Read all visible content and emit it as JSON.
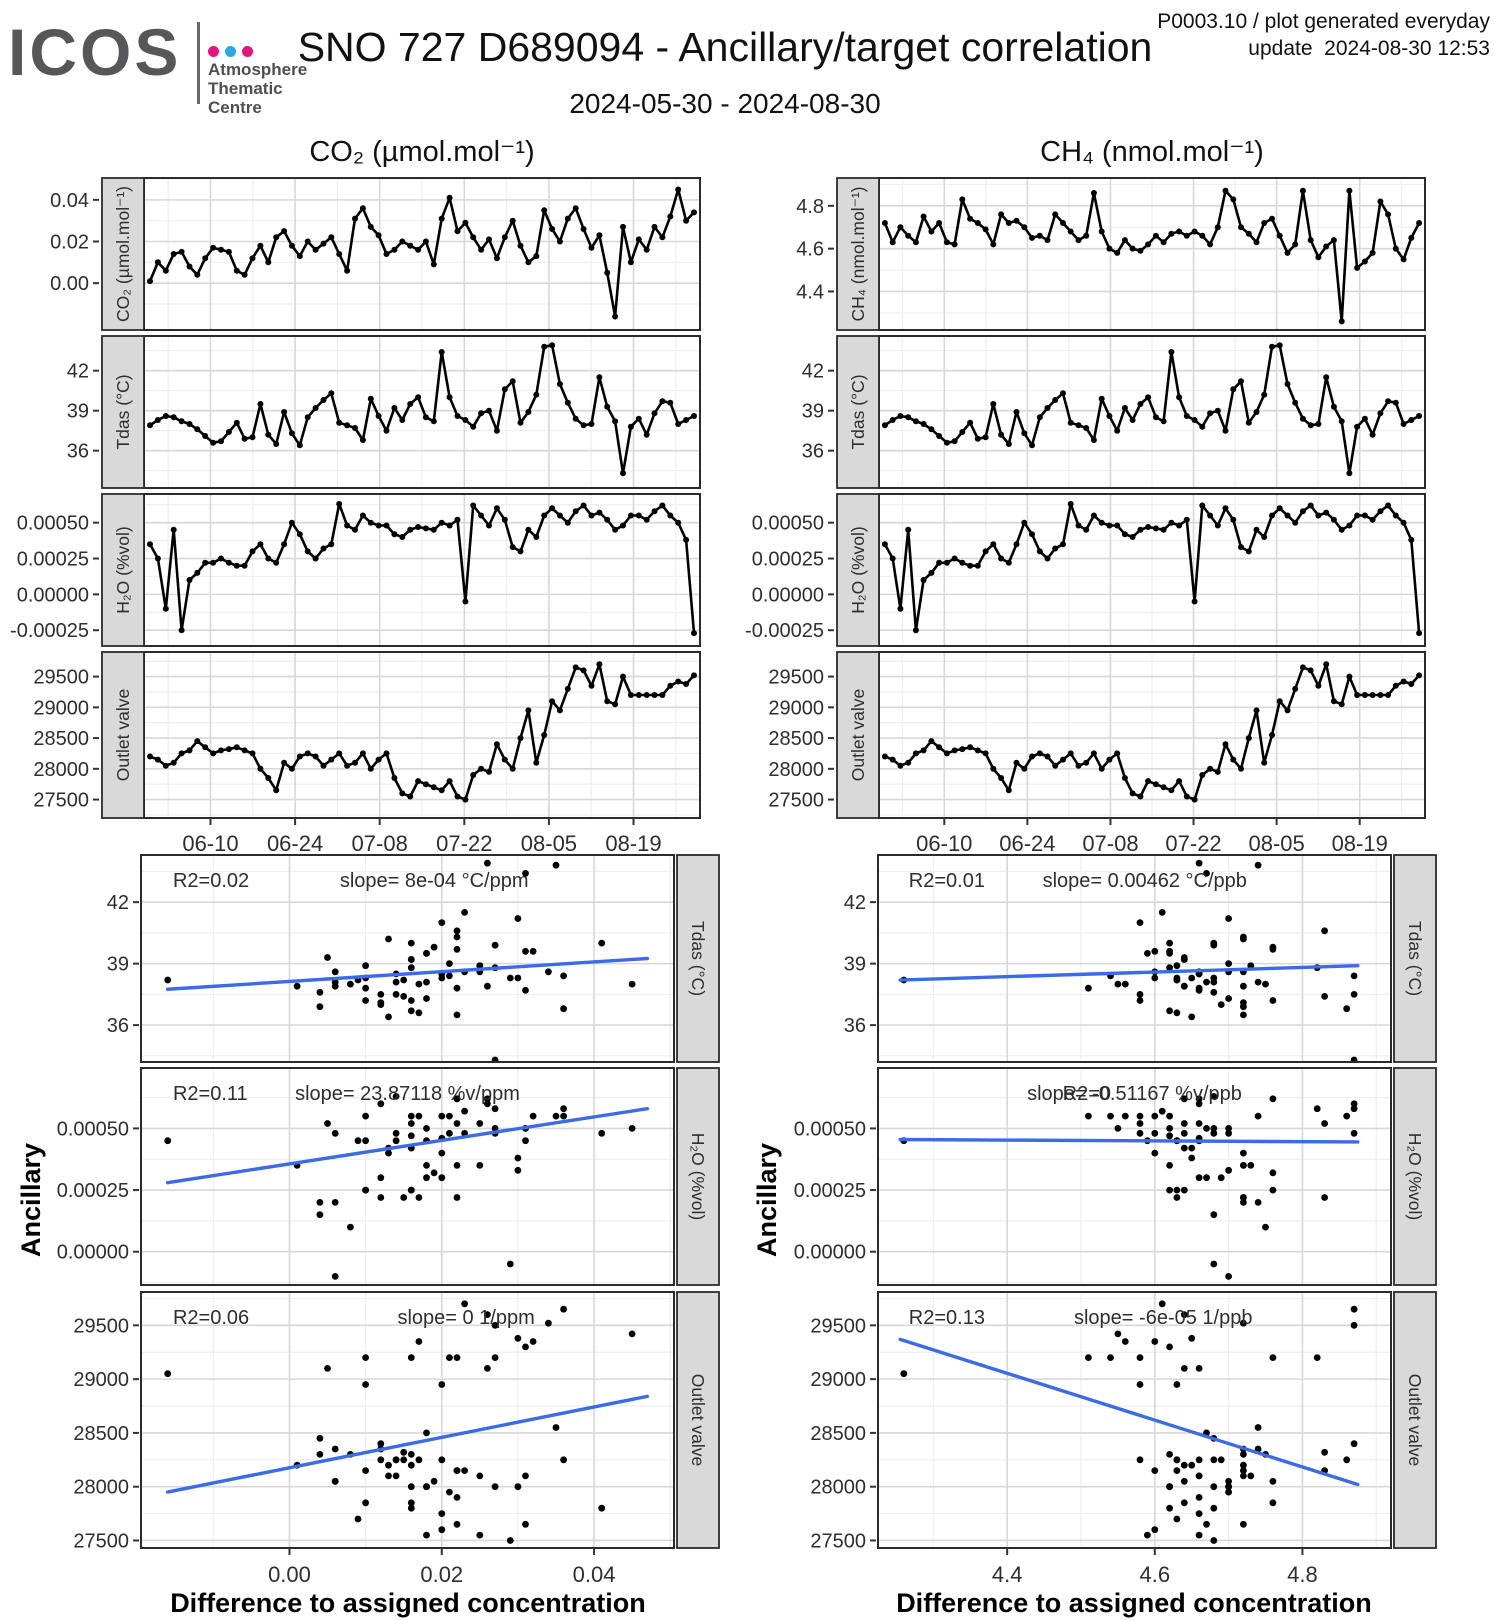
{
  "header": {
    "logo": {
      "text": "ICOS",
      "lines": [
        "Atmosphere",
        "Thematic",
        "Centre"
      ],
      "dot_colors": [
        "#e6127d",
        "#27a9e1",
        "#e6127d"
      ]
    },
    "title": "SNO 727 D689094 - Ancillary/target correlation",
    "subtitle": "2024-05-30 - 2024-08-30",
    "info": {
      "line1": "P0003.10 / plot generated everyday",
      "line2": "update  2024-08-30 12:53"
    }
  },
  "chart_data": {
    "type": "multi-panel",
    "x_label": "Difference to assigned concentration",
    "y_label": "Ancillary",
    "accent_blue": "#3B6BE8",
    "series_color": "#000000",
    "date_axis": {
      "n_days": 92,
      "major_days": [
        11,
        25,
        39,
        53,
        67,
        81
      ],
      "minor_days": [
        4,
        18,
        32,
        46,
        60,
        74,
        88
      ],
      "labels": [
        "06-10",
        "06-24",
        "07-08",
        "07-22",
        "08-05",
        "08-19"
      ]
    },
    "series": {
      "co2": [
        0.001,
        0.01,
        0.006,
        0.014,
        0.015,
        0.008,
        0.004,
        0.012,
        0.017,
        0.016,
        0.015,
        0.006,
        0.004,
        0.012,
        0.018,
        0.01,
        0.022,
        0.025,
        0.018,
        0.013,
        0.02,
        0.016,
        0.019,
        0.022,
        0.014,
        0.006,
        0.031,
        0.036,
        0.027,
        0.023,
        0.014,
        0.016,
        0.02,
        0.018,
        0.016,
        0.02,
        0.009,
        0.031,
        0.041,
        0.025,
        0.029,
        0.022,
        0.016,
        0.021,
        0.012,
        0.022,
        0.03,
        0.018,
        0.01,
        0.013,
        0.035,
        0.026,
        0.02,
        0.031,
        0.036,
        0.026,
        0.017,
        0.023,
        0.005,
        -0.016,
        0.027,
        0.01,
        0.021,
        0.016,
        0.027,
        0.022,
        0.032,
        0.045,
        0.03,
        0.034
      ],
      "ch4": [
        4.72,
        4.63,
        4.7,
        4.66,
        4.63,
        4.75,
        4.68,
        4.72,
        4.63,
        4.62,
        4.83,
        4.74,
        4.72,
        4.69,
        4.62,
        4.76,
        4.72,
        4.73,
        4.7,
        4.65,
        4.66,
        4.64,
        4.76,
        4.72,
        4.68,
        4.64,
        4.66,
        4.86,
        4.68,
        4.6,
        4.58,
        4.64,
        4.6,
        4.59,
        4.62,
        4.66,
        4.63,
        4.67,
        4.68,
        4.66,
        4.68,
        4.66,
        4.62,
        4.7,
        4.87,
        4.83,
        4.7,
        4.67,
        4.63,
        4.72,
        4.74,
        4.66,
        4.58,
        4.62,
        4.87,
        4.64,
        4.56,
        4.61,
        4.64,
        4.26,
        4.87,
        4.51,
        4.54,
        4.58,
        4.82,
        4.76,
        4.6,
        4.55,
        4.65,
        4.72
      ],
      "tdas": [
        37.9,
        38.3,
        38.6,
        38.5,
        38.2,
        38.0,
        37.6,
        37.1,
        36.6,
        36.7,
        37.4,
        38.1,
        36.9,
        37.0,
        39.5,
        37.2,
        36.5,
        38.9,
        37.3,
        36.4,
        38.5,
        39.2,
        39.8,
        40.3,
        38.1,
        37.9,
        37.7,
        36.8,
        39.9,
        38.6,
        37.5,
        39.2,
        38.3,
        39.5,
        40.0,
        38.5,
        38.2,
        43.4,
        40.0,
        38.6,
        38.3,
        37.8,
        38.8,
        39.0,
        37.5,
        40.6,
        41.2,
        38.1,
        38.9,
        40.2,
        43.8,
        43.9,
        41.0,
        39.6,
        38.4,
        37.9,
        38.0,
        41.5,
        39.3,
        38.2,
        34.3,
        37.8,
        38.4,
        37.2,
        38.8,
        39.7,
        39.6,
        38.0,
        38.3,
        38.6
      ],
      "h2o": [
        0.00035,
        0.00025,
        -0.0001,
        0.00045,
        -0.00025,
        0.0001,
        0.00015,
        0.00022,
        0.00022,
        0.00025,
        0.00022,
        0.0002,
        0.0002,
        0.0003,
        0.00035,
        0.00025,
        0.00022,
        0.00035,
        0.0005,
        0.00042,
        0.0003,
        0.00025,
        0.00032,
        0.00035,
        0.00063,
        0.00048,
        0.00045,
        0.00055,
        0.0005,
        0.00048,
        0.00048,
        0.00042,
        0.0004,
        0.00045,
        0.00047,
        0.00046,
        0.00045,
        0.0005,
        0.00048,
        0.00052,
        -5e-05,
        0.00062,
        0.00055,
        0.00048,
        0.0006,
        0.00052,
        0.00033,
        0.0003,
        0.00045,
        0.0004,
        0.00055,
        0.0006,
        0.00055,
        0.0005,
        0.00058,
        0.00062,
        0.00055,
        0.00057,
        0.00052,
        0.00045,
        0.00048,
        0.00055,
        0.00055,
        0.00052,
        0.00058,
        0.00062,
        0.00055,
        0.0005,
        0.00038,
        -0.00027
      ],
      "outlet": [
        28200,
        28150,
        28050,
        28100,
        28250,
        28300,
        28450,
        28350,
        28250,
        28300,
        28320,
        28350,
        28300,
        28250,
        28000,
        27850,
        27650,
        28100,
        28000,
        28200,
        28250,
        28200,
        28050,
        28150,
        28250,
        28050,
        28100,
        28250,
        28000,
        28150,
        28250,
        27850,
        27600,
        27550,
        27800,
        27750,
        27700,
        27650,
        27800,
        27550,
        27500,
        27900,
        28000,
        27950,
        28400,
        28150,
        28000,
        28500,
        28950,
        28100,
        28550,
        29100,
        28950,
        29300,
        29650,
        29600,
        29350,
        29700,
        29100,
        29050,
        29500,
        29200,
        29200,
        29200,
        29200,
        29200,
        29350,
        29420,
        29380,
        29520
      ]
    },
    "columns": [
      {
        "key": "co2",
        "title": "CO₂ (µmol.mol⁻¹)",
        "ts": [
          {
            "series": "co2",
            "strip": "CO₂ (µmol.mol⁻¹)",
            "ylim": [
              -0.0225,
              0.0505
            ],
            "ticks": [
              0,
              0.02,
              0.04
            ],
            "tick_labels": [
              "0.00",
              "0.02",
              "0.04"
            ]
          },
          {
            "series": "tdas",
            "strip": "Tdas (°C)",
            "ylim": [
              33.2,
              44.6
            ],
            "ticks": [
              36,
              39,
              42
            ],
            "tick_labels": [
              "36",
              "39",
              "42"
            ]
          },
          {
            "series": "h2o",
            "strip": "H₂O (%vol)",
            "ylim": [
              -0.00036,
              0.0007
            ],
            "ticks": [
              -0.00025,
              0,
              0.00025,
              0.0005
            ],
            "tick_labels": [
              "-0.00025",
              "0.00000",
              "0.00025",
              "0.00050"
            ]
          },
          {
            "series": "outlet",
            "strip": "Outlet valve",
            "ylim": [
              27200,
              29900
            ],
            "ticks": [
              27500,
              28000,
              28500,
              29000,
              29500
            ],
            "tick_labels": [
              "27500",
              "28000",
              "28500",
              "29000",
              "29500"
            ]
          }
        ],
        "scatter_x": {
          "series": "co2",
          "lim": [
            -0.0195,
            0.0505
          ],
          "ticks": [
            0,
            0.02,
            0.04
          ],
          "tick_labels": [
            "0.00",
            "0.02",
            "0.04"
          ]
        },
        "scatter": [
          {
            "y": "tdas",
            "strip": "Tdas (°C)",
            "ylim": [
              34.2,
              44.3
            ],
            "ticks": [
              36,
              39,
              42
            ],
            "tick_labels": [
              "36",
              "39",
              "42"
            ],
            "r2": "R2=0.02",
            "slope": "slope= 8e-04 °C/ppm",
            "r2_fx": 0.06,
            "slope_fx": 0.55,
            "fit": [
              [
                -0.016,
                37.75
              ],
              [
                0.047,
                39.25
              ]
            ]
          },
          {
            "y": "h2o",
            "strip": "H₂O (%vol)",
            "ylim": [
              -0.000135,
              0.000745
            ],
            "ticks": [
              0,
              0.00025,
              0.0005
            ],
            "tick_labels": [
              "0.00000",
              "0.00025",
              "0.00050"
            ],
            "r2": "R2=0.11",
            "slope": "slope= 23.87118 %v/ppm",
            "r2_fx": 0.06,
            "slope_fx": 0.5,
            "fit": [
              [
                -0.016,
                0.00028
              ],
              [
                0.047,
                0.00058
              ]
            ]
          },
          {
            "y": "outlet",
            "strip": "Outlet valve",
            "ylim": [
              27430,
              29810
            ],
            "ticks": [
              27500,
              28000,
              28500,
              29000,
              29500
            ],
            "tick_labels": [
              "27500",
              "28000",
              "28500",
              "29000",
              "29500"
            ],
            "r2": "R2=0.06",
            "slope": "slope= 0 1/ppm",
            "r2_fx": 0.06,
            "slope_fx": 0.61,
            "fit": [
              [
                -0.016,
                27950
              ],
              [
                0.047,
                28840
              ]
            ]
          }
        ]
      },
      {
        "key": "ch4",
        "title": "CH₄ (nmol.mol⁻¹)",
        "ts": [
          {
            "series": "ch4",
            "strip": "CH₄ (nmol.mol⁻¹)",
            "ylim": [
              4.22,
              4.93
            ],
            "ticks": [
              4.4,
              4.6,
              4.8
            ],
            "tick_labels": [
              "4.4",
              "4.6",
              "4.8"
            ]
          },
          {
            "series": "tdas",
            "strip": "Tdas (°C)",
            "ylim": [
              33.2,
              44.6
            ],
            "ticks": [
              36,
              39,
              42
            ],
            "tick_labels": [
              "36",
              "39",
              "42"
            ]
          },
          {
            "series": "h2o",
            "strip": "H₂O (%vol)",
            "ylim": [
              -0.00036,
              0.0007
            ],
            "ticks": [
              -0.00025,
              0,
              0.00025,
              0.0005
            ],
            "tick_labels": [
              "-0.00025",
              "0.00000",
              "0.00025",
              "0.00050"
            ]
          },
          {
            "series": "outlet",
            "strip": "Outlet valve",
            "ylim": [
              27200,
              29900
            ],
            "ticks": [
              27500,
              28000,
              28500,
              29000,
              29500
            ],
            "tick_labels": [
              "27500",
              "28000",
              "28500",
              "29000",
              "29500"
            ]
          }
        ],
        "scatter_x": {
          "series": "ch4",
          "lim": [
            4.225,
            4.92
          ],
          "ticks": [
            4.4,
            4.6,
            4.8
          ],
          "tick_labels": [
            "4.4",
            "4.6",
            "4.8"
          ]
        },
        "scatter": [
          {
            "y": "tdas",
            "strip": "Tdas (°C)",
            "ylim": [
              34.2,
              44.3
            ],
            "ticks": [
              36,
              39,
              42
            ],
            "tick_labels": [
              "36",
              "39",
              "42"
            ],
            "r2": "R2=0.01",
            "slope": "slope= 0.00462 °C/ppb",
            "r2_fx": 0.06,
            "slope_fx": 0.52,
            "fit": [
              [
                4.255,
                38.2
              ],
              [
                4.875,
                38.9
              ]
            ]
          },
          {
            "y": "h2o",
            "strip": "H₂O (%vol)",
            "ylim": [
              -0.000135,
              0.000745
            ],
            "ticks": [
              0,
              0.00025,
              0.0005
            ],
            "tick_labels": [
              "0.00000",
              "0.00025",
              "0.00050"
            ],
            "r2": "R2=0",
            "slope": "slope= -0.51167 %v/ppb",
            "r2_fx": 0.36,
            "slope_fx": 0.5,
            "fit": [
              [
                4.255,
                0.000455
              ],
              [
                4.875,
                0.000445
              ]
            ]
          },
          {
            "y": "outlet",
            "strip": "Outlet valve",
            "ylim": [
              27430,
              29810
            ],
            "ticks": [
              27500,
              28000,
              28500,
              29000,
              29500
            ],
            "tick_labels": [
              "27500",
              "28000",
              "28500",
              "29000",
              "29500"
            ],
            "r2": "R2=0.13",
            "slope": "slope= -6e-05 1/ppb",
            "r2_fx": 0.06,
            "slope_fx": 0.556,
            "fit": [
              [
                4.255,
                29370
              ],
              [
                4.875,
                28020
              ]
            ]
          }
        ]
      }
    ]
  }
}
